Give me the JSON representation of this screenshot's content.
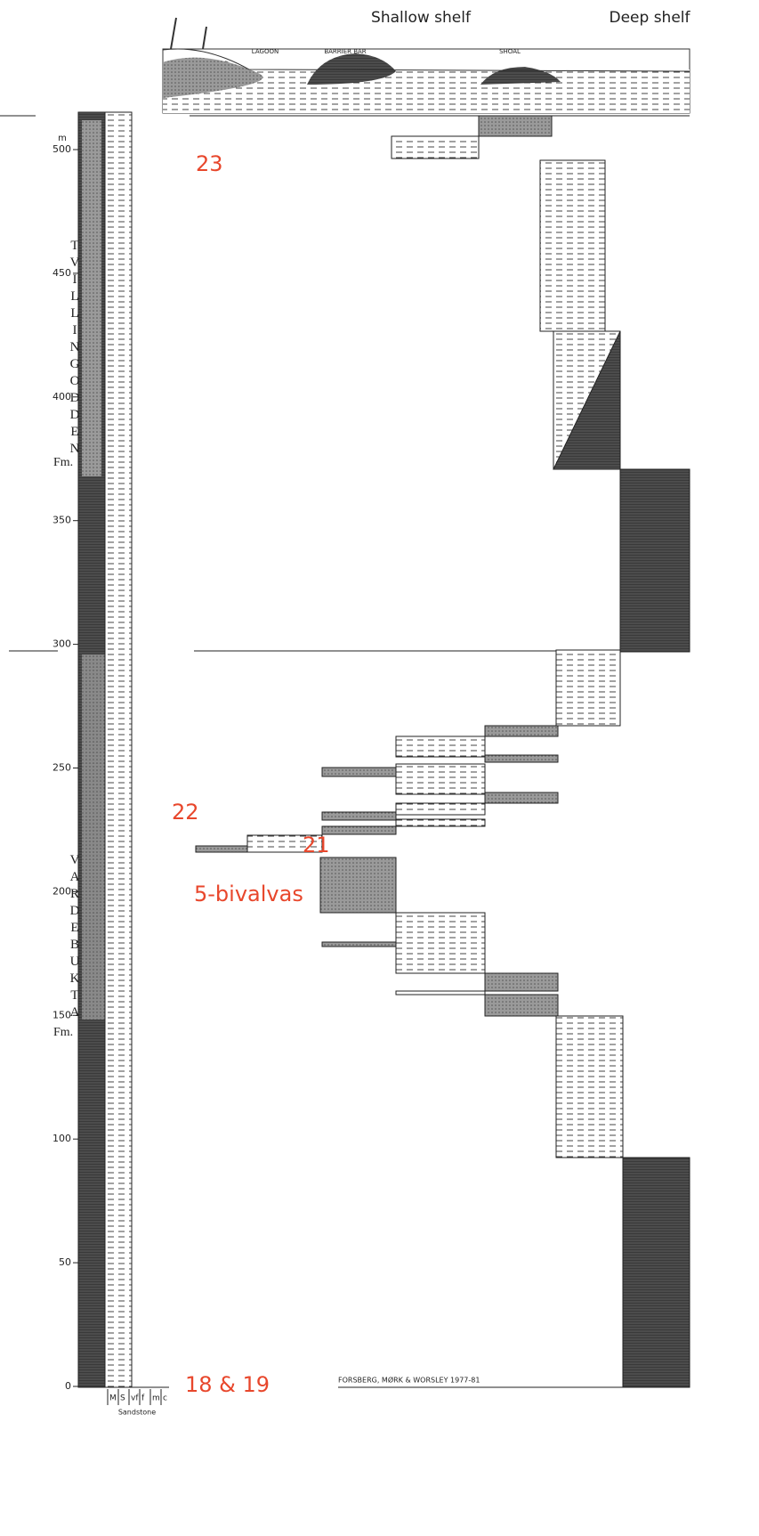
{
  "header": {
    "shallow": "Shallow shelf",
    "deep": "Deep shelf",
    "environments": [
      "LAGOON",
      "BARRIER BAR",
      "SHOAL"
    ]
  },
  "scale": {
    "unit": "m",
    "ticks": [
      0,
      50,
      100,
      150,
      200,
      250,
      300,
      350,
      400,
      450,
      500
    ]
  },
  "formations": [
    {
      "name": "TVILLINGODDEN",
      "suffix": "Fm."
    },
    {
      "name": "VARDEBUKTA",
      "suffix": "Fm."
    }
  ],
  "annotations": [
    "23",
    "22",
    "21",
    "5-bivalvas",
    "18 & 19"
  ],
  "footer": {
    "credit": "FORSBERG, MØRK & WORSLEY  1977-81",
    "grain_sizes": [
      "M",
      "S",
      "vf",
      "f",
      "m",
      "c"
    ],
    "grain_label": "Sandstone"
  }
}
